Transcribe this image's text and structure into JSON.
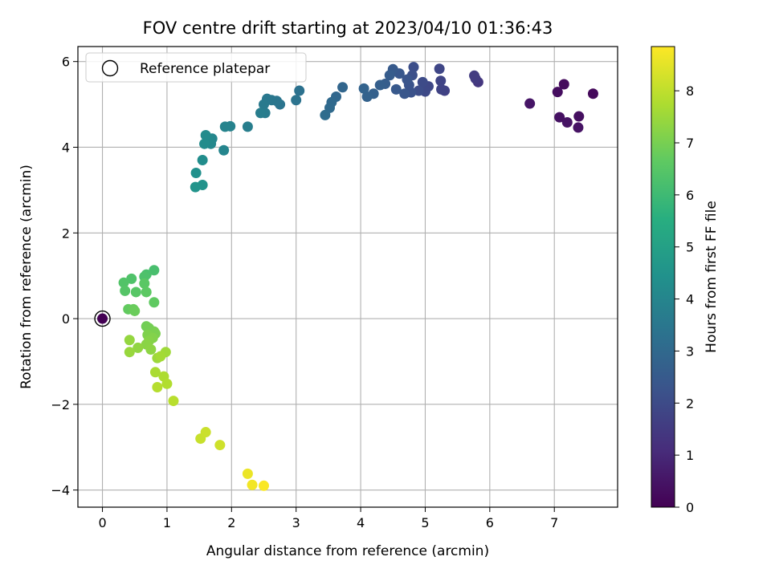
{
  "chart_data": {
    "type": "scatter",
    "title": "FOV centre drift starting at 2023/04/10 01:36:43",
    "xlabel": "Angular distance from reference (arcmin)",
    "ylabel": "Rotation from reference (arcmin)",
    "xlim": [
      -0.38,
      7.98
    ],
    "ylim": [
      -4.4,
      6.35
    ],
    "xticks": [
      0,
      1,
      2,
      3,
      4,
      5,
      6,
      7
    ],
    "xtick_labels": [
      "0",
      "1",
      "2",
      "3",
      "4",
      "5",
      "6",
      "7"
    ],
    "yticks": [
      -4,
      -2,
      0,
      2,
      4,
      6
    ],
    "ytick_labels": [
      "−4",
      "−2",
      "0",
      "2",
      "4",
      "6"
    ],
    "grid": true,
    "legend": {
      "placement": "top-left",
      "entries": [
        "Reference platepar"
      ]
    },
    "colorbar": {
      "label": "Hours from first FF file",
      "colormap": "viridis",
      "range": [
        0,
        8.85
      ],
      "ticks": [
        0,
        1,
        2,
        3,
        4,
        5,
        6,
        7,
        8
      ],
      "tick_labels": [
        "0",
        "1",
        "2",
        "3",
        "4",
        "5",
        "6",
        "7",
        "8"
      ]
    },
    "reference_point": {
      "x": 0,
      "y": 0
    },
    "points": [
      [
        7.6,
        5.25,
        0.2
      ],
      [
        7.15,
        5.47,
        0.25
      ],
      [
        7.05,
        5.29,
        0.3
      ],
      [
        6.62,
        5.02,
        0.5
      ],
      [
        7.08,
        4.7,
        0.4
      ],
      [
        7.2,
        4.58,
        0.45
      ],
      [
        7.38,
        4.72,
        0.35
      ],
      [
        7.37,
        4.46,
        0.45
      ],
      [
        5.82,
        5.52,
        1.4
      ],
      [
        5.78,
        5.6,
        1.5
      ],
      [
        5.76,
        5.67,
        1.55
      ],
      [
        5.3,
        5.32,
        1.7
      ],
      [
        5.25,
        5.35,
        1.75
      ],
      [
        5.24,
        5.55,
        1.8
      ],
      [
        5.22,
        5.83,
        1.85
      ],
      [
        5.05,
        5.42,
        1.9
      ],
      [
        5.0,
        5.3,
        1.95
      ],
      [
        4.96,
        5.52,
        2.0
      ],
      [
        4.9,
        5.32,
        2.05
      ],
      [
        4.82,
        5.87,
        2.1
      ],
      [
        4.8,
        5.68,
        2.15
      ],
      [
        4.78,
        5.28,
        2.2
      ],
      [
        4.75,
        5.45,
        2.25
      ],
      [
        4.72,
        5.58,
        2.3
      ],
      [
        4.68,
        5.25,
        2.35
      ],
      [
        4.6,
        5.72,
        2.4
      ],
      [
        4.55,
        5.35,
        2.45
      ],
      [
        4.5,
        5.82,
        2.5
      ],
      [
        4.45,
        5.68,
        2.55
      ],
      [
        4.38,
        5.48,
        2.6
      ],
      [
        4.3,
        5.45,
        2.65
      ],
      [
        4.2,
        5.25,
        2.7
      ],
      [
        4.1,
        5.18,
        2.75
      ],
      [
        4.05,
        5.37,
        2.8
      ],
      [
        3.72,
        5.4,
        2.9
      ],
      [
        3.62,
        5.18,
        2.95
      ],
      [
        3.55,
        5.05,
        3.0
      ],
      [
        3.52,
        4.92,
        3.05
      ],
      [
        3.45,
        4.75,
        3.1
      ],
      [
        3.05,
        5.32,
        3.3
      ],
      [
        3.0,
        5.1,
        3.35
      ],
      [
        2.75,
        5.0,
        3.4
      ],
      [
        2.7,
        5.08,
        3.45
      ],
      [
        2.62,
        5.1,
        3.5
      ],
      [
        2.55,
        5.13,
        3.55
      ],
      [
        2.5,
        5.0,
        3.6
      ],
      [
        2.52,
        4.8,
        3.65
      ],
      [
        2.45,
        4.8,
        3.7
      ],
      [
        2.25,
        4.48,
        3.75
      ],
      [
        1.98,
        4.49,
        3.9
      ],
      [
        1.9,
        4.48,
        3.95
      ],
      [
        1.88,
        3.93,
        4.0
      ],
      [
        1.7,
        4.2,
        4.05
      ],
      [
        1.68,
        4.08,
        4.1
      ],
      [
        1.65,
        4.18,
        4.15
      ],
      [
        1.6,
        4.28,
        4.2
      ],
      [
        1.58,
        4.08,
        4.25
      ],
      [
        1.55,
        3.7,
        4.3
      ],
      [
        1.45,
        3.4,
        4.4
      ],
      [
        1.55,
        3.12,
        4.5
      ],
      [
        1.44,
        3.07,
        4.55
      ],
      [
        0.8,
        1.13,
        6.2
      ],
      [
        0.68,
        1.03,
        6.25
      ],
      [
        0.65,
        0.98,
        6.3
      ],
      [
        0.45,
        0.93,
        6.35
      ],
      [
        0.33,
        0.84,
        6.4
      ],
      [
        0.35,
        0.65,
        6.45
      ],
      [
        0.52,
        0.62,
        6.5
      ],
      [
        0.65,
        0.82,
        6.55
      ],
      [
        0.68,
        0.62,
        6.6
      ],
      [
        0.8,
        0.38,
        6.65
      ],
      [
        0.4,
        0.22,
        6.7
      ],
      [
        0.48,
        0.22,
        6.75
      ],
      [
        0.5,
        0.18,
        6.8
      ],
      [
        0.68,
        -0.18,
        6.9
      ],
      [
        0.72,
        -0.22,
        6.95
      ],
      [
        0.8,
        -0.3,
        7.0
      ],
      [
        0.82,
        -0.35,
        7.05
      ],
      [
        0.7,
        -0.38,
        7.1
      ],
      [
        0.78,
        -0.45,
        7.15
      ],
      [
        0.72,
        -0.52,
        7.2
      ],
      [
        0.68,
        -0.6,
        7.25
      ],
      [
        0.75,
        -0.72,
        7.3
      ],
      [
        0.55,
        -0.68,
        7.35
      ],
      [
        0.42,
        -0.5,
        7.4
      ],
      [
        0.42,
        -0.78,
        7.45
      ],
      [
        0.85,
        -0.92,
        7.5
      ],
      [
        0.98,
        -0.78,
        7.55
      ],
      [
        0.9,
        -0.88,
        7.6
      ],
      [
        0.82,
        -1.25,
        7.7
      ],
      [
        0.95,
        -1.35,
        7.75
      ],
      [
        1.0,
        -1.52,
        7.8
      ],
      [
        0.85,
        -1.6,
        7.85
      ],
      [
        1.1,
        -1.92,
        7.9
      ],
      [
        1.52,
        -2.8,
        8.1
      ],
      [
        1.6,
        -2.65,
        8.15
      ],
      [
        1.82,
        -2.95,
        8.2
      ],
      [
        2.25,
        -3.62,
        8.6
      ],
      [
        2.32,
        -3.88,
        8.7
      ],
      [
        2.5,
        -3.9,
        8.8
      ],
      [
        0.0,
        0.0,
        0.0
      ]
    ]
  }
}
